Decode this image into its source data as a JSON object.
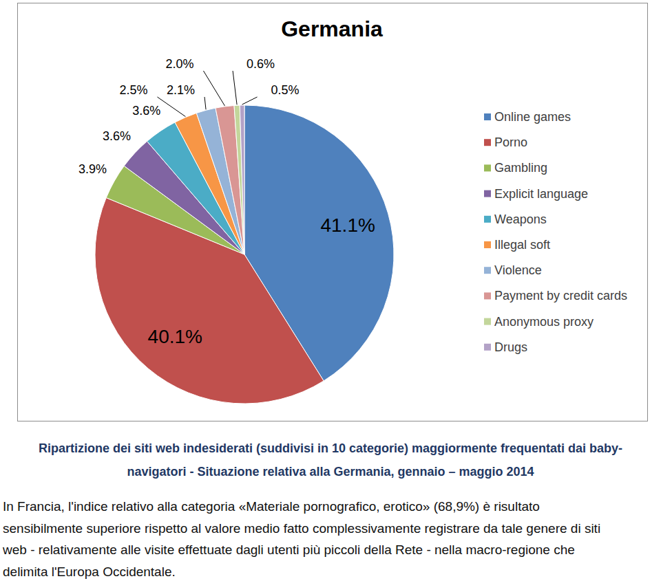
{
  "chart_data": {
    "type": "pie",
    "title": "Germania",
    "categories": [
      "Online games",
      "Porno",
      "Gambling",
      "Explicit language",
      "Weapons",
      "Illegal soft",
      "Violence",
      "Payment by credit cards",
      "Anonymous proxy",
      "Drugs"
    ],
    "values": [
      41.1,
      40.1,
      3.9,
      3.6,
      3.6,
      2.5,
      2.1,
      2.0,
      0.6,
      0.5
    ],
    "value_labels": [
      "41.1%",
      "40.1%",
      "3.9%",
      "3.6%",
      "3.6%",
      "2.5%",
      "2.1%",
      "2.0%",
      "0.6%",
      "0.5%"
    ],
    "colors": [
      "#4f81bd",
      "#c0504d",
      "#9bbb59",
      "#8064a2",
      "#4bacc6",
      "#f79646",
      "#95b3d7",
      "#d99694",
      "#c3d69b",
      "#b3a2c7"
    ],
    "data_labels": true,
    "legend": "right"
  },
  "caption": [
    "Ripartizione dei siti web indesiderati (suddivisi in 10 categorie) maggiormente frequentati dai baby-",
    "navigatori - Situazione relativa alla Germania, gennaio – maggio 2014"
  ],
  "paragraph": [
    "In Francia, l'indice relativo alla categoria «Materiale pornografico, erotico» (68,9%) è risultato",
    "sensibilmente superiore rispetto al valore medio fatto complessivamente registrare da tale genere di siti",
    "web - relativamente alle visite effettuate dagli utenti più piccoli della Rete - nella macro-regione che",
    "delimita l'Europa Occidentale."
  ]
}
